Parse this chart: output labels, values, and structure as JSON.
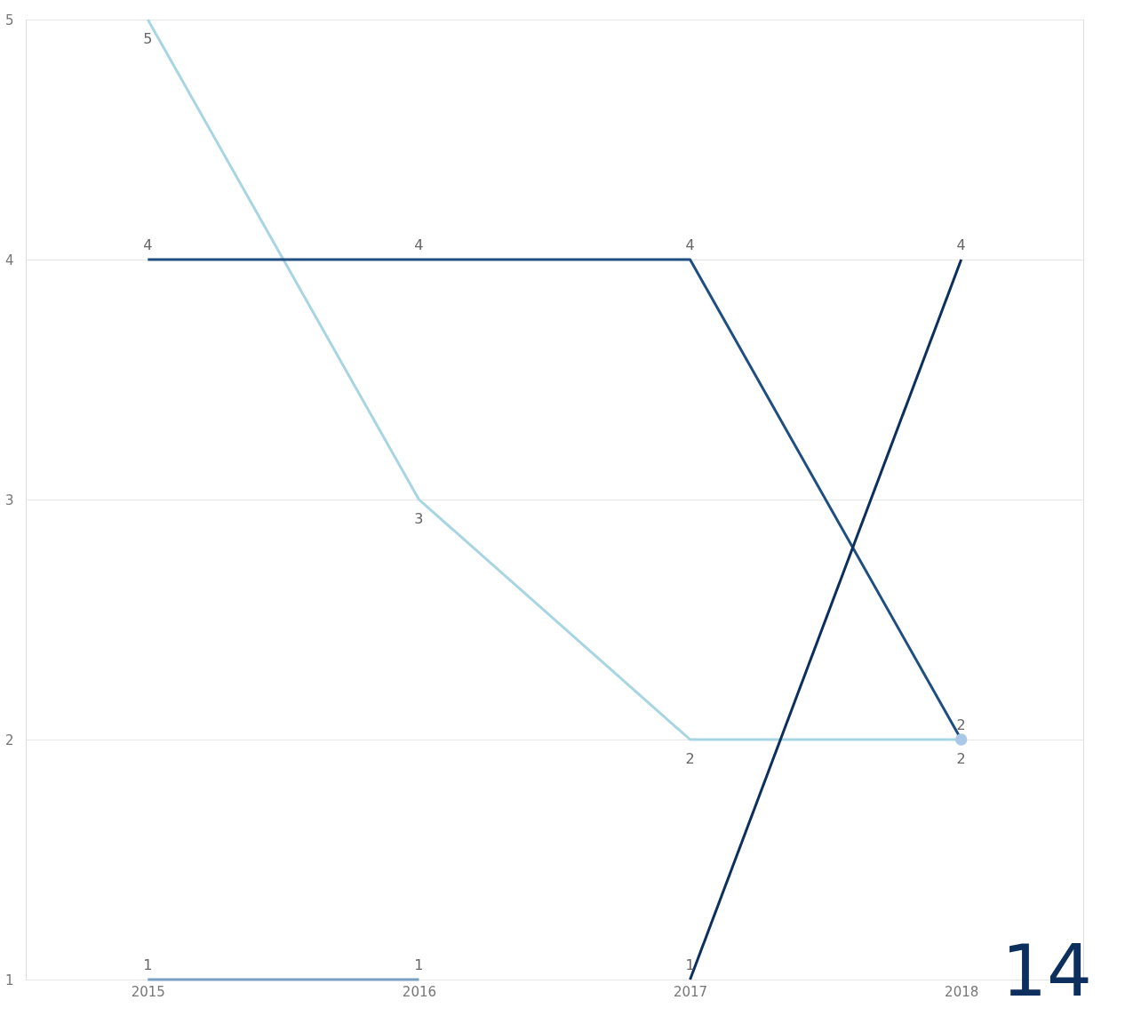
{
  "chart_data": {
    "type": "line",
    "categories": [
      "2015",
      "2016",
      "2017",
      "2018"
    ],
    "series": [
      {
        "color": "#a8d5e2",
        "values": [
          5,
          3,
          2,
          2
        ],
        "value_labels": [
          "5",
          "3",
          "2",
          "2"
        ]
      },
      {
        "color": "#1f4e82",
        "values": [
          4,
          4,
          4,
          2
        ],
        "value_labels": [
          "4",
          "4",
          "4",
          "2"
        ]
      },
      {
        "color": "#0c2f5e",
        "values": [
          null,
          null,
          1,
          4
        ],
        "value_labels": [
          null,
          null,
          "1",
          "4"
        ]
      },
      {
        "color": "#7a9fc4",
        "values": [
          1,
          1,
          null,
          null
        ],
        "value_labels": [
          "1",
          "1",
          null,
          null
        ]
      },
      {
        "type": "scatter",
        "color": "#a9c8e8",
        "values": [
          null,
          null,
          null,
          2
        ],
        "value_labels": [
          null,
          null,
          null,
          null
        ]
      }
    ],
    "ylim": [
      1,
      5
    ],
    "yticks": [
      1,
      2,
      3,
      4,
      5
    ],
    "grid": "y",
    "legend": false,
    "annotations": [
      "14"
    ]
  }
}
